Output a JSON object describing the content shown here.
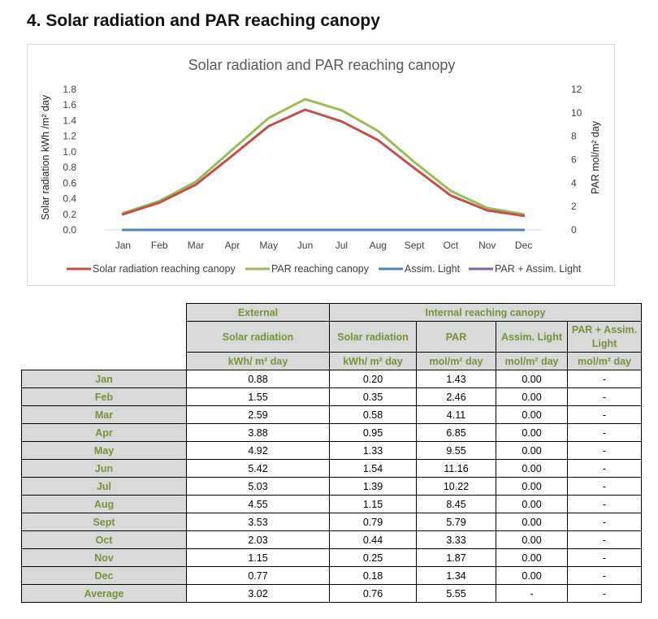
{
  "heading": "4. Solar radiation and PAR reaching canopy",
  "chart_data": {
    "type": "line",
    "title": "Solar radiation and PAR reaching canopy",
    "categories": [
      "Jan",
      "Feb",
      "Mar",
      "Apr",
      "May",
      "Jun",
      "Jul",
      "Aug",
      "Sept",
      "Oct",
      "Nov",
      "Dec"
    ],
    "y_left": {
      "label": "Solar radiation kWh /m² day",
      "range": [
        0,
        1.8
      ],
      "ticks": [
        "0.0",
        "0.2",
        "0.4",
        "0.6",
        "0.8",
        "1.0",
        "1.2",
        "1.4",
        "1.6",
        "1.8"
      ]
    },
    "y_right": {
      "label": "PAR mol/m² day",
      "range": [
        0,
        12
      ],
      "ticks": [
        "0",
        "2",
        "4",
        "6",
        "8",
        "10",
        "12"
      ]
    },
    "grid": false,
    "legend_position": "bottom",
    "series": [
      {
        "name": "Solar radiation reaching canopy",
        "axis": "left",
        "color": "#c0504d",
        "values": [
          0.2,
          0.35,
          0.58,
          0.95,
          1.33,
          1.54,
          1.39,
          1.15,
          0.79,
          0.44,
          0.25,
          0.18
        ]
      },
      {
        "name": "PAR reaching canopy",
        "axis": "right",
        "color": "#9bbb59",
        "values": [
          1.43,
          2.46,
          4.11,
          6.85,
          9.55,
          11.16,
          10.22,
          8.45,
          5.79,
          3.33,
          1.87,
          1.34
        ]
      },
      {
        "name": "Assim. Light",
        "axis": "right",
        "color": "#4f81bd",
        "values": [
          0,
          0,
          0,
          0,
          0,
          0,
          0,
          0,
          0,
          0,
          0,
          0
        ]
      },
      {
        "name": "PAR + Assim. Light",
        "axis": "right",
        "color": "#8064a2",
        "values": [
          0,
          0,
          0,
          0,
          0,
          0,
          0,
          0,
          0,
          0,
          0,
          0
        ]
      }
    ]
  },
  "table": {
    "group_external": "External",
    "group_internal": "Internal reaching canopy",
    "col_solar_ext": "Solar radiation",
    "col_solar_int": "Solar radiation",
    "col_par": "PAR",
    "col_assim": "Assim. Light",
    "col_par_assim": "PAR + Assim. Light",
    "unit_solar_ext": "kWh/ m² day",
    "unit_solar_int": "kWh/ m² day",
    "unit_par": "mol/m² day",
    "unit_assim": "mol/m² day",
    "unit_par_assim": "mol/m² day",
    "rows": [
      {
        "label": "Jan",
        "ext": "0.88",
        "int": "0.20",
        "par": "1.43",
        "assim": "0.00",
        "parassim": "-"
      },
      {
        "label": "Feb",
        "ext": "1.55",
        "int": "0.35",
        "par": "2.46",
        "assim": "0.00",
        "parassim": "-"
      },
      {
        "label": "Mar",
        "ext": "2.59",
        "int": "0.58",
        "par": "4.11",
        "assim": "0.00",
        "parassim": "-"
      },
      {
        "label": "Apr",
        "ext": "3.88",
        "int": "0.95",
        "par": "6.85",
        "assim": "0.00",
        "parassim": "-"
      },
      {
        "label": "May",
        "ext": "4.92",
        "int": "1.33",
        "par": "9.55",
        "assim": "0.00",
        "parassim": "-"
      },
      {
        "label": "Jun",
        "ext": "5.42",
        "int": "1.54",
        "par": "11.16",
        "assim": "0.00",
        "parassim": "-"
      },
      {
        "label": "Jul",
        "ext": "5.03",
        "int": "1.39",
        "par": "10.22",
        "assim": "0.00",
        "parassim": "-"
      },
      {
        "label": "Aug",
        "ext": "4.55",
        "int": "1.15",
        "par": "8.45",
        "assim": "0.00",
        "parassim": "-"
      },
      {
        "label": "Sept",
        "ext": "3.53",
        "int": "0.79",
        "par": "5.79",
        "assim": "0.00",
        "parassim": "-"
      },
      {
        "label": "Oct",
        "ext": "2.03",
        "int": "0.44",
        "par": "3.33",
        "assim": "0.00",
        "parassim": "-"
      },
      {
        "label": "Nov",
        "ext": "1.15",
        "int": "0.25",
        "par": "1.87",
        "assim": "0.00",
        "parassim": "-"
      },
      {
        "label": "Dec",
        "ext": "0.77",
        "int": "0.18",
        "par": "1.34",
        "assim": "0.00",
        "parassim": "-"
      },
      {
        "label": "Average",
        "ext": "3.02",
        "int": "0.76",
        "par": "5.55",
        "assim": "-",
        "parassim": "-"
      }
    ]
  }
}
